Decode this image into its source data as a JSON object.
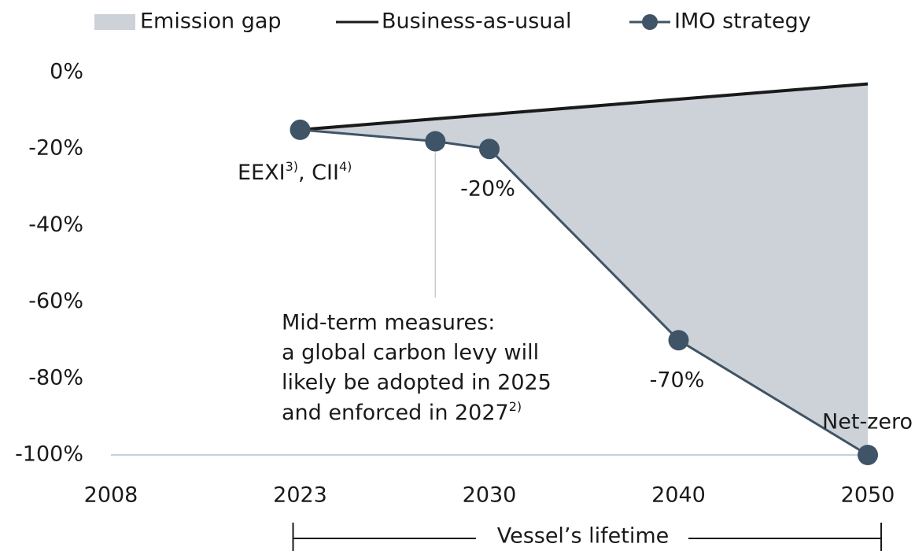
{
  "chart_data": {
    "type": "line",
    "legend": "top",
    "xticks": [
      2008,
      2023,
      2030,
      2040,
      2050
    ],
    "ylim": [
      -100,
      0
    ],
    "yticks": [
      {
        "value": 0,
        "label": "0%"
      },
      {
        "value": -20,
        "label": "-20%"
      },
      {
        "value": -40,
        "label": "-40%"
      },
      {
        "value": -60,
        "label": "-60%"
      },
      {
        "value": -80,
        "label": "-80%"
      },
      {
        "value": -100,
        "label": "-100%"
      }
    ],
    "gap": {
      "name": "Emission gap",
      "color": "#cdd2d8"
    },
    "series": [
      {
        "name": "Business-as-usual",
        "color": "#1a1a1a",
        "x": [
          2023,
          2050
        ],
        "values": [
          -15,
          -3
        ]
      },
      {
        "name": "IMO strategy",
        "color": "#3f5466",
        "x": [
          2023,
          2028,
          2030,
          2040,
          2050
        ],
        "values": [
          -15,
          -18,
          -20,
          -70,
          -100
        ],
        "value_labels": [
          null,
          null,
          "-20%",
          "-70%",
          null
        ]
      }
    ],
    "annotations": {
      "eexi": [
        "EEXI",
        "3)",
        ", CII",
        "4)"
      ],
      "midterm": [
        "Mid-term measures:",
        "a global carbon levy will",
        "likely be adopted in 2025",
        "and enforced in 2027",
        "2)"
      ],
      "netzero": "Net-zero",
      "lifetime": "Vessel’s lifetime"
    }
  }
}
